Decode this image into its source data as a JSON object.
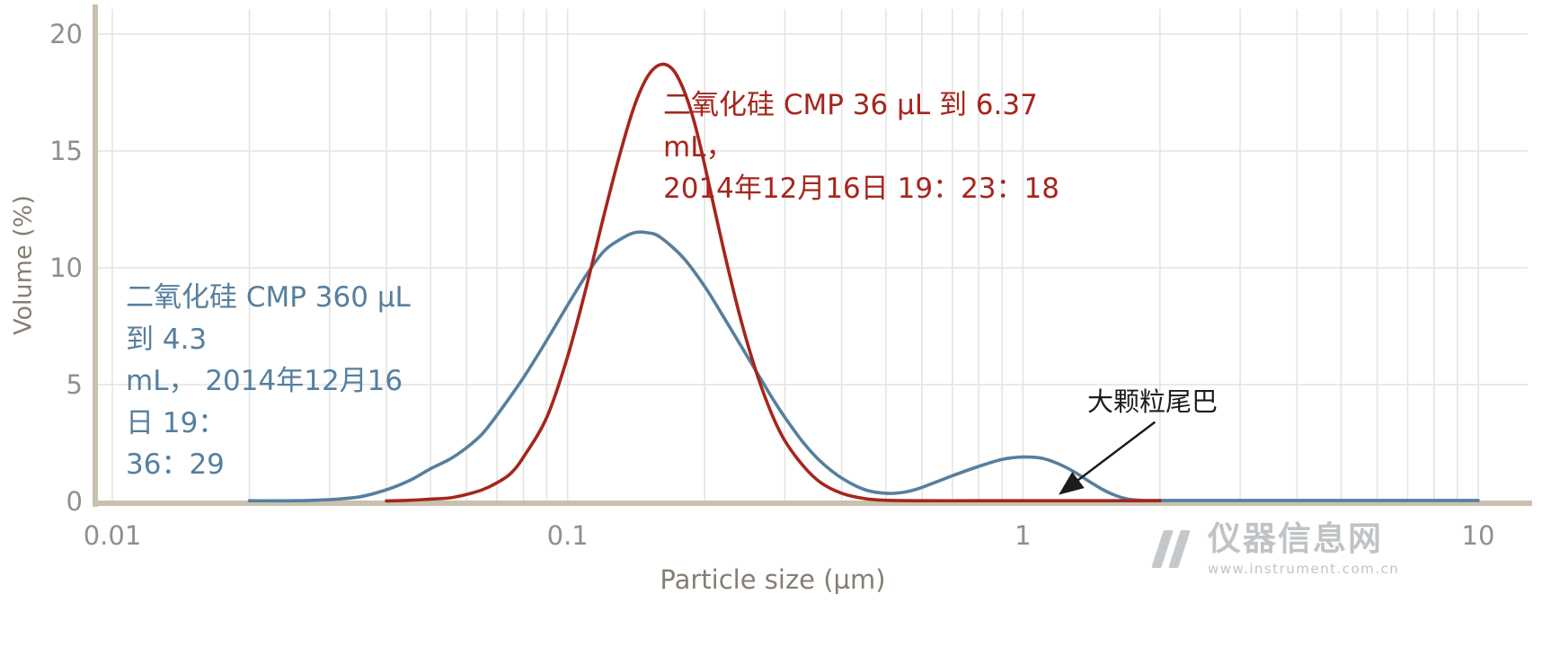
{
  "chart_data": {
    "type": "line",
    "title": "",
    "xlabel": "Particle size (µm)",
    "ylabel": "Volume (%)",
    "x_scale": "log",
    "xlim": [
      0.01,
      10
    ],
    "ylim": [
      0,
      20
    ],
    "x_ticks": [
      0.01,
      0.1,
      1,
      10
    ],
    "x_tick_labels": [
      "0.01",
      "0.1",
      "1",
      "10"
    ],
    "y_ticks": [
      0,
      5,
      10,
      15,
      20
    ],
    "grid": true,
    "series": [
      {
        "name": "二氧化硅 CMP 360 µL 到 4.3 mL， 2014年12月16日 19：36：29",
        "color": "#567f9e",
        "points": [
          [
            0.02,
            0.03
          ],
          [
            0.025,
            0.03
          ],
          [
            0.03,
            0.08
          ],
          [
            0.035,
            0.2
          ],
          [
            0.04,
            0.5
          ],
          [
            0.045,
            0.9
          ],
          [
            0.05,
            1.4
          ],
          [
            0.055,
            1.8
          ],
          [
            0.06,
            2.3
          ],
          [
            0.065,
            2.9
          ],
          [
            0.07,
            3.7
          ],
          [
            0.08,
            5.3
          ],
          [
            0.09,
            6.9
          ],
          [
            0.1,
            8.4
          ],
          [
            0.11,
            9.7
          ],
          [
            0.12,
            10.7
          ],
          [
            0.13,
            11.2
          ],
          [
            0.14,
            11.5
          ],
          [
            0.15,
            11.5
          ],
          [
            0.16,
            11.3
          ],
          [
            0.18,
            10.4
          ],
          [
            0.2,
            9.2
          ],
          [
            0.22,
            7.9
          ],
          [
            0.25,
            6.1
          ],
          [
            0.28,
            4.5
          ],
          [
            0.3,
            3.6
          ],
          [
            0.33,
            2.5
          ],
          [
            0.36,
            1.7
          ],
          [
            0.4,
            1.0
          ],
          [
            0.45,
            0.5
          ],
          [
            0.5,
            0.35
          ],
          [
            0.55,
            0.4
          ],
          [
            0.6,
            0.6
          ],
          [
            0.7,
            1.1
          ],
          [
            0.8,
            1.5
          ],
          [
            0.9,
            1.8
          ],
          [
            1.0,
            1.9
          ],
          [
            1.1,
            1.85
          ],
          [
            1.2,
            1.6
          ],
          [
            1.3,
            1.25
          ],
          [
            1.4,
            0.85
          ],
          [
            1.5,
            0.5
          ],
          [
            1.6,
            0.25
          ],
          [
            1.7,
            0.1
          ],
          [
            1.8,
            0.05
          ],
          [
            2.0,
            0.04
          ],
          [
            3,
            0.04
          ],
          [
            5,
            0.04
          ],
          [
            8,
            0.04
          ],
          [
            10,
            0.04
          ]
        ]
      },
      {
        "name": "二氧化硅 CMP 36 µL 到 6.37 mL，2014年12月16日 19：23：18",
        "color": "#a6251d",
        "points": [
          [
            0.04,
            0.02
          ],
          [
            0.045,
            0.05
          ],
          [
            0.05,
            0.1
          ],
          [
            0.055,
            0.15
          ],
          [
            0.06,
            0.3
          ],
          [
            0.065,
            0.5
          ],
          [
            0.07,
            0.8
          ],
          [
            0.075,
            1.2
          ],
          [
            0.08,
            1.9
          ],
          [
            0.09,
            3.6
          ],
          [
            0.1,
            6.2
          ],
          [
            0.11,
            9.2
          ],
          [
            0.12,
            12.2
          ],
          [
            0.13,
            14.8
          ],
          [
            0.14,
            16.9
          ],
          [
            0.15,
            18.2
          ],
          [
            0.16,
            18.7
          ],
          [
            0.17,
            18.5
          ],
          [
            0.18,
            17.6
          ],
          [
            0.19,
            16.2
          ],
          [
            0.2,
            14.4
          ],
          [
            0.22,
            10.8
          ],
          [
            0.24,
            7.8
          ],
          [
            0.26,
            5.5
          ],
          [
            0.28,
            3.8
          ],
          [
            0.3,
            2.6
          ],
          [
            0.33,
            1.5
          ],
          [
            0.36,
            0.8
          ],
          [
            0.4,
            0.35
          ],
          [
            0.45,
            0.12
          ],
          [
            0.5,
            0.05
          ],
          [
            0.6,
            0.03
          ],
          [
            0.8,
            0.03
          ],
          [
            1,
            0.03
          ],
          [
            1.5,
            0.03
          ],
          [
            2,
            0.03
          ]
        ]
      }
    ],
    "annotations": {
      "red_label": {
        "lines": [
          "二氧化硅 CMP 36 µL 到 6.37 mL，",
          "2014年12月16日 19：23：18"
        ],
        "color": "#a6251d"
      },
      "blue_label": {
        "lines": [
          "二氧化硅 CMP 360 µL 到 4.3",
          "mL， 2014年12月16日 19：",
          "36：29"
        ],
        "color": "#567f9e"
      },
      "tail_label": {
        "text": "大颗粒尾巴",
        "color": "#1c1c1c",
        "arrow_from": [
          1.95,
          3.4
        ],
        "arrow_to": [
          1.22,
          0.4
        ]
      }
    }
  },
  "watermark": {
    "site_name": "仪器信息网",
    "url": "www.instrument.com.cn"
  }
}
